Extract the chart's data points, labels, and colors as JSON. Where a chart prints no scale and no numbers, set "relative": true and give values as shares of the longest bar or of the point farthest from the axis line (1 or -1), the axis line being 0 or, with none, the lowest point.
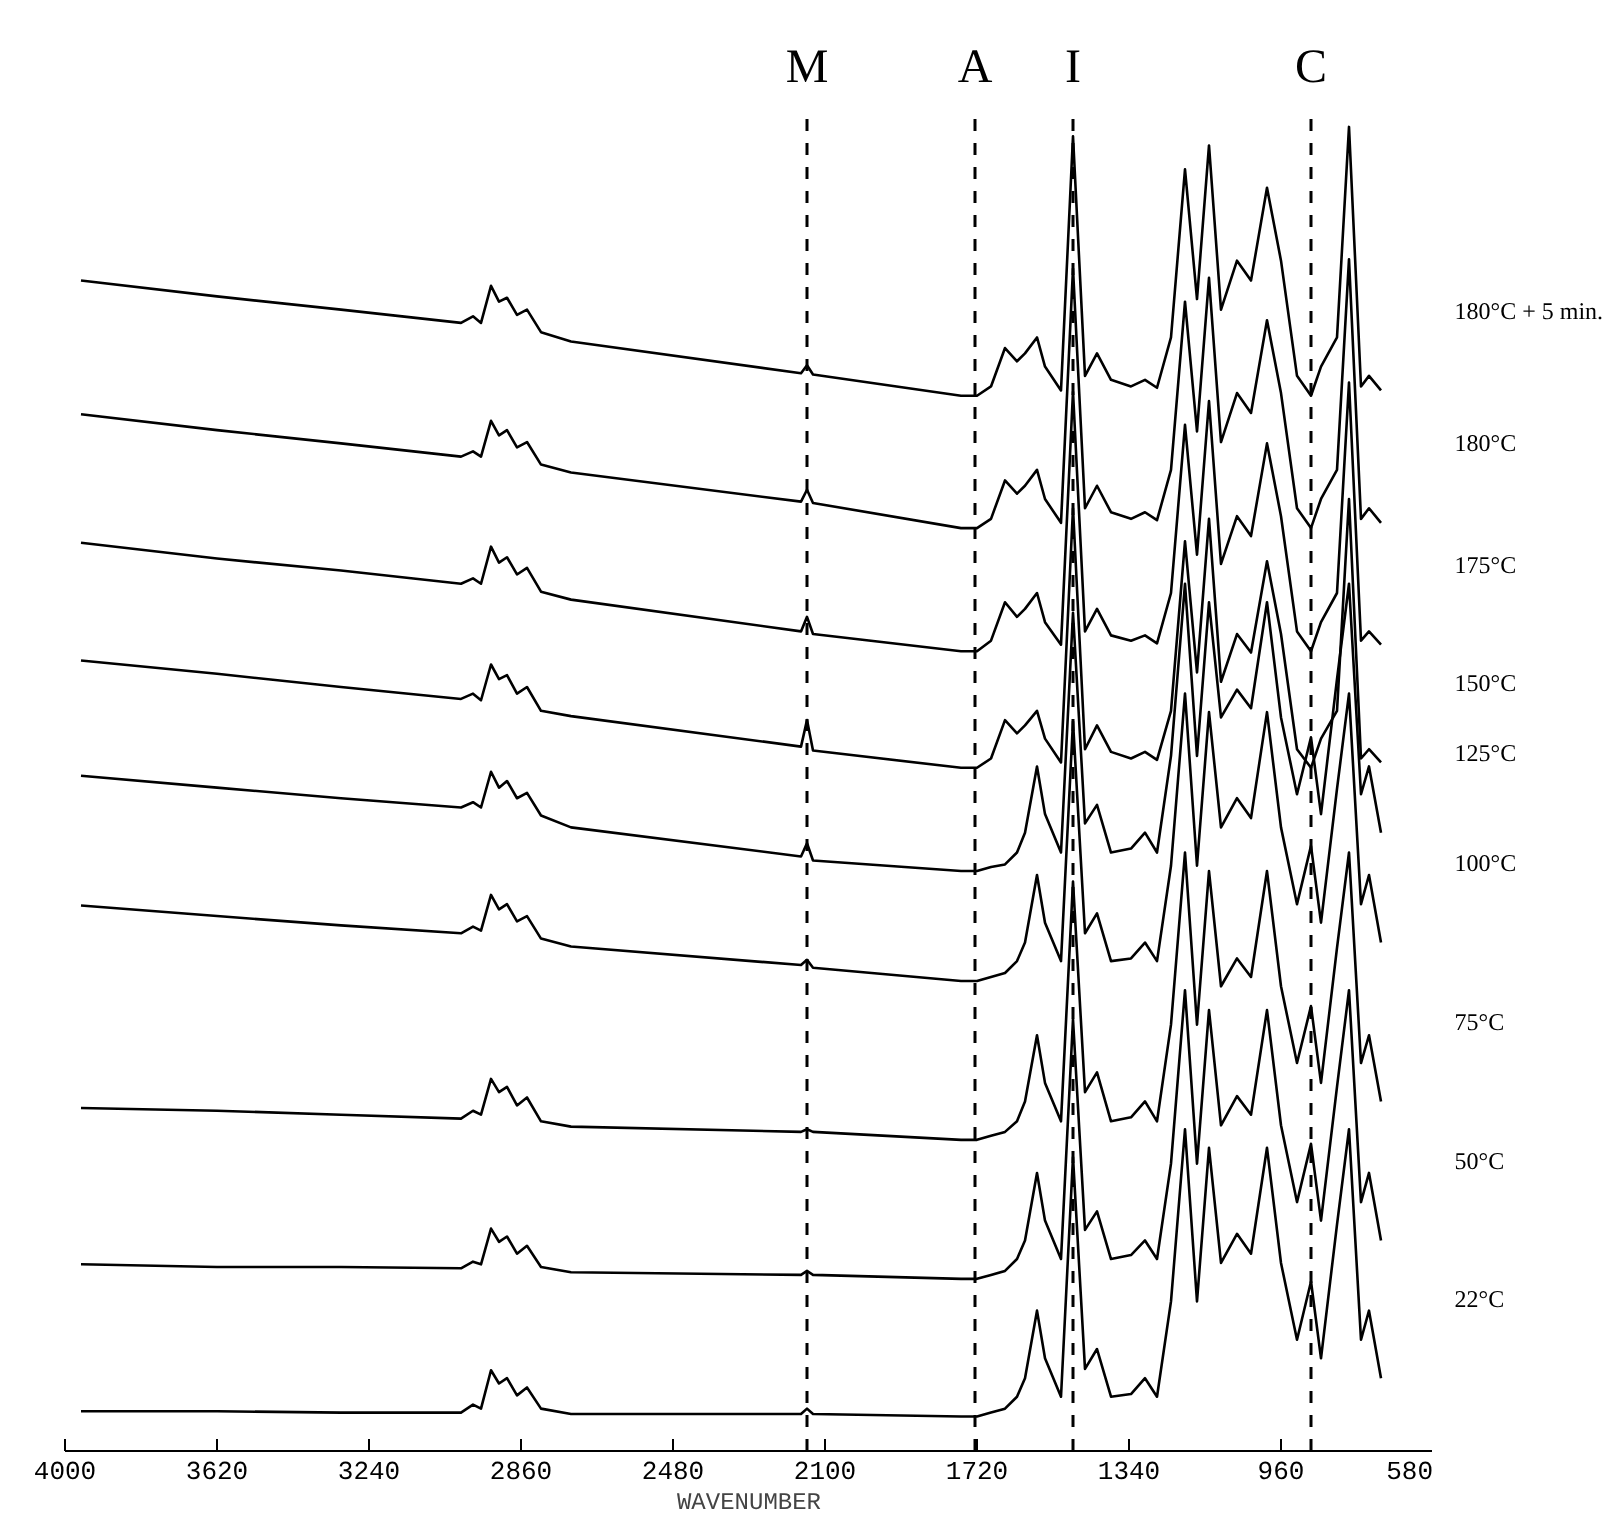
{
  "chart_data": {
    "type": "line",
    "relative": true,
    "xlabel": "WAVENUMBER",
    "line_style": "solid",
    "xlim": [
      4000,
      580
    ],
    "xticks": [
      4000,
      3620,
      3240,
      2860,
      2480,
      2100,
      1720,
      1340,
      960,
      580
    ],
    "x": [
      3960,
      3620,
      3310,
      3010,
      2980,
      2960,
      2935,
      2915,
      2895,
      2870,
      2845,
      2810,
      2735,
      2160,
      2145,
      2130,
      1760,
      1720,
      1685,
      1650,
      1620,
      1600,
      1570,
      1550,
      1510,
      1480,
      1450,
      1420,
      1385,
      1335,
      1300,
      1270,
      1235,
      1200,
      1170,
      1140,
      1110,
      1070,
      1035,
      995,
      960,
      920,
      885,
      860,
      820,
      790,
      760,
      740,
      710
    ],
    "series": [
      {
        "name": "180°C + 5 min.",
        "color": "#000000",
        "values": [
          0.884,
          0.872,
          0.862,
          0.852,
          0.857,
          0.852,
          0.88,
          0.868,
          0.871,
          0.858,
          0.862,
          0.845,
          0.838,
          0.814,
          0.82,
          0.813,
          0.797,
          0.797,
          0.804,
          0.833,
          0.823,
          0.829,
          0.841,
          0.819,
          0.801,
          0.993,
          0.812,
          0.829,
          0.809,
          0.804,
          0.809,
          0.803,
          0.841,
          0.968,
          0.87,
          0.986,
          0.862,
          0.899,
          0.884,
          0.954,
          0.899,
          0.812,
          0.797,
          0.819,
          0.841,
          1.0,
          0.804,
          0.812,
          0.801
        ]
      },
      {
        "name": "180°C",
        "color": "#000000",
        "values": [
          0.783,
          0.771,
          0.761,
          0.751,
          0.755,
          0.751,
          0.778,
          0.767,
          0.771,
          0.758,
          0.762,
          0.745,
          0.739,
          0.717,
          0.726,
          0.716,
          0.697,
          0.697,
          0.704,
          0.733,
          0.723,
          0.729,
          0.741,
          0.719,
          0.701,
          0.893,
          0.712,
          0.729,
          0.709,
          0.704,
          0.709,
          0.703,
          0.741,
          0.868,
          0.77,
          0.886,
          0.762,
          0.799,
          0.784,
          0.854,
          0.799,
          0.712,
          0.697,
          0.719,
          0.741,
          0.9,
          0.704,
          0.712,
          0.701
        ]
      },
      {
        "name": "175°C",
        "color": "#000000",
        "values": [
          0.686,
          0.674,
          0.665,
          0.655,
          0.659,
          0.655,
          0.683,
          0.671,
          0.675,
          0.662,
          0.667,
          0.649,
          0.643,
          0.619,
          0.63,
          0.617,
          0.604,
          0.604,
          0.612,
          0.641,
          0.63,
          0.636,
          0.648,
          0.626,
          0.609,
          0.8,
          0.619,
          0.636,
          0.616,
          0.612,
          0.616,
          0.61,
          0.648,
          0.775,
          0.677,
          0.793,
          0.67,
          0.706,
          0.691,
          0.761,
          0.706,
          0.619,
          0.604,
          0.626,
          0.648,
          0.807,
          0.612,
          0.619,
          0.609
        ]
      },
      {
        "name": "150°C",
        "color": "#000000",
        "values": [
          0.597,
          0.587,
          0.577,
          0.568,
          0.572,
          0.567,
          0.594,
          0.583,
          0.586,
          0.572,
          0.577,
          0.559,
          0.555,
          0.532,
          0.552,
          0.529,
          0.516,
          0.516,
          0.523,
          0.552,
          0.542,
          0.548,
          0.559,
          0.538,
          0.52,
          0.712,
          0.53,
          0.548,
          0.528,
          0.523,
          0.528,
          0.522,
          0.559,
          0.687,
          0.588,
          0.704,
          0.581,
          0.617,
          0.603,
          0.672,
          0.617,
          0.53,
          0.516,
          0.538,
          0.559,
          0.719,
          0.523,
          0.53,
          0.52
        ]
      },
      {
        "name": "125°C",
        "color": "#000000",
        "values": [
          0.51,
          0.501,
          0.493,
          0.486,
          0.49,
          0.486,
          0.513,
          0.501,
          0.506,
          0.493,
          0.497,
          0.48,
          0.471,
          0.449,
          0.459,
          0.446,
          0.438,
          0.438,
          0.441,
          0.443,
          0.452,
          0.467,
          0.517,
          0.481,
          0.452,
          0.633,
          0.474,
          0.488,
          0.452,
          0.455,
          0.467,
          0.452,
          0.525,
          0.655,
          0.525,
          0.641,
          0.554,
          0.575,
          0.561,
          0.641,
          0.554,
          0.496,
          0.539,
          0.481,
          0.583,
          0.655,
          0.496,
          0.517,
          0.467
        ]
      },
      {
        "name": "100°C",
        "color": "#000000",
        "values": [
          0.412,
          0.404,
          0.397,
          0.391,
          0.396,
          0.393,
          0.42,
          0.409,
          0.413,
          0.4,
          0.404,
          0.387,
          0.381,
          0.367,
          0.371,
          0.365,
          0.355,
          0.355,
          0.358,
          0.361,
          0.37,
          0.384,
          0.435,
          0.399,
          0.37,
          0.551,
          0.391,
          0.406,
          0.37,
          0.372,
          0.384,
          0.37,
          0.442,
          0.572,
          0.442,
          0.558,
          0.471,
          0.493,
          0.478,
          0.558,
          0.471,
          0.413,
          0.457,
          0.399,
          0.5,
          0.572,
          0.413,
          0.435,
          0.384
        ]
      },
      {
        "name": "75°C",
        "color": "#000000",
        "values": [
          0.259,
          0.257,
          0.254,
          0.251,
          0.257,
          0.254,
          0.281,
          0.271,
          0.275,
          0.261,
          0.267,
          0.249,
          0.245,
          0.241,
          0.243,
          0.241,
          0.235,
          0.235,
          0.238,
          0.241,
          0.249,
          0.264,
          0.314,
          0.278,
          0.249,
          0.43,
          0.271,
          0.286,
          0.249,
          0.252,
          0.264,
          0.249,
          0.322,
          0.452,
          0.322,
          0.438,
          0.351,
          0.372,
          0.358,
          0.438,
          0.351,
          0.293,
          0.336,
          0.278,
          0.38,
          0.452,
          0.293,
          0.314,
          0.264
        ]
      },
      {
        "name": "50°C",
        "color": "#000000",
        "values": [
          0.141,
          0.139,
          0.139,
          0.138,
          0.143,
          0.141,
          0.168,
          0.158,
          0.162,
          0.149,
          0.155,
          0.139,
          0.135,
          0.133,
          0.136,
          0.133,
          0.13,
          0.13,
          0.133,
          0.136,
          0.145,
          0.159,
          0.21,
          0.174,
          0.145,
          0.326,
          0.167,
          0.181,
          0.145,
          0.148,
          0.159,
          0.145,
          0.217,
          0.348,
          0.217,
          0.333,
          0.246,
          0.268,
          0.254,
          0.333,
          0.246,
          0.188,
          0.232,
          0.174,
          0.275,
          0.348,
          0.188,
          0.21,
          0.159
        ]
      },
      {
        "name": "22°C",
        "color": "#000000",
        "values": [
          0.03,
          0.03,
          0.029,
          0.029,
          0.035,
          0.032,
          0.061,
          0.051,
          0.055,
          0.042,
          0.048,
          0.032,
          0.028,
          0.028,
          0.032,
          0.028,
          0.026,
          0.026,
          0.029,
          0.032,
          0.041,
          0.055,
          0.106,
          0.07,
          0.041,
          0.222,
          0.062,
          0.077,
          0.041,
          0.043,
          0.055,
          0.041,
          0.113,
          0.243,
          0.113,
          0.229,
          0.142,
          0.164,
          0.149,
          0.229,
          0.142,
          0.084,
          0.128,
          0.07,
          0.171,
          0.243,
          0.084,
          0.106,
          0.055
        ]
      }
    ],
    "ref_lines": [
      {
        "axis": "x",
        "value": 2145,
        "label": "M",
        "color": "#000000",
        "line_style": "dashed"
      },
      {
        "axis": "x",
        "value": 1725,
        "label": "A",
        "color": "#000000",
        "line_style": "dashed"
      },
      {
        "axis": "x",
        "value": 1480,
        "label": "I",
        "color": "#000000",
        "line_style": "dashed"
      },
      {
        "axis": "x",
        "value": 885,
        "label": "C",
        "color": "#000000",
        "line_style": "dashed"
      }
    ]
  }
}
